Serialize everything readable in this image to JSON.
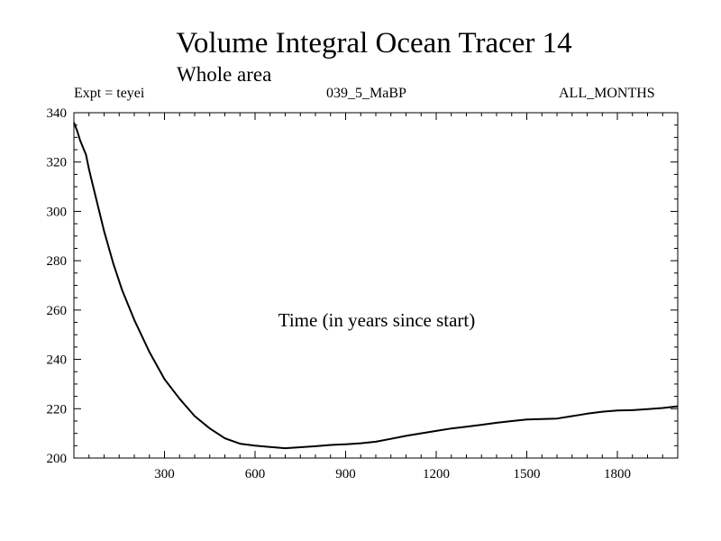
{
  "chart_data": {
    "type": "line",
    "title": "Volume Integral Ocean Tracer 14",
    "subtitle": "Whole area",
    "expt_label": "Expt = teyei",
    "run_label": "039_5_MaBP",
    "season_label": "ALL_MONTHS",
    "xlabel": "Time (in years since start)",
    "ylabel": "",
    "xlim": [
      0,
      2000
    ],
    "ylim": [
      200,
      340
    ],
    "xticks": [
      300,
      600,
      900,
      1200,
      1500,
      1800
    ],
    "yticks": [
      200,
      220,
      240,
      260,
      280,
      300,
      320,
      340
    ],
    "series": [
      {
        "name": "Volume Integral Ocean Tracer 14",
        "color": "#000000",
        "x": [
          0,
          10,
          20,
          30,
          40,
          50,
          60,
          80,
          100,
          130,
          160,
          200,
          250,
          300,
          350,
          400,
          450,
          500,
          550,
          600,
          650,
          700,
          750,
          800,
          850,
          900,
          950,
          1000,
          1050,
          1100,
          1150,
          1200,
          1250,
          1300,
          1350,
          1400,
          1450,
          1500,
          1550,
          1600,
          1650,
          1700,
          1750,
          1800,
          1850,
          1900,
          1950,
          2000
        ],
        "y": [
          336,
          333,
          329,
          326,
          323,
          317,
          312,
          302,
          292,
          279,
          268,
          256,
          243,
          232,
          224,
          217,
          212,
          208,
          205.8,
          205,
          204.5,
          204,
          204.4,
          204.8,
          205.3,
          205.6,
          206,
          206.6,
          207.8,
          209,
          210,
          211,
          212,
          212.7,
          213.5,
          214.3,
          215,
          215.6,
          215.8,
          216,
          217,
          218,
          218.8,
          219.3,
          219.4,
          219.8,
          220.3,
          221
        ]
      }
    ]
  }
}
